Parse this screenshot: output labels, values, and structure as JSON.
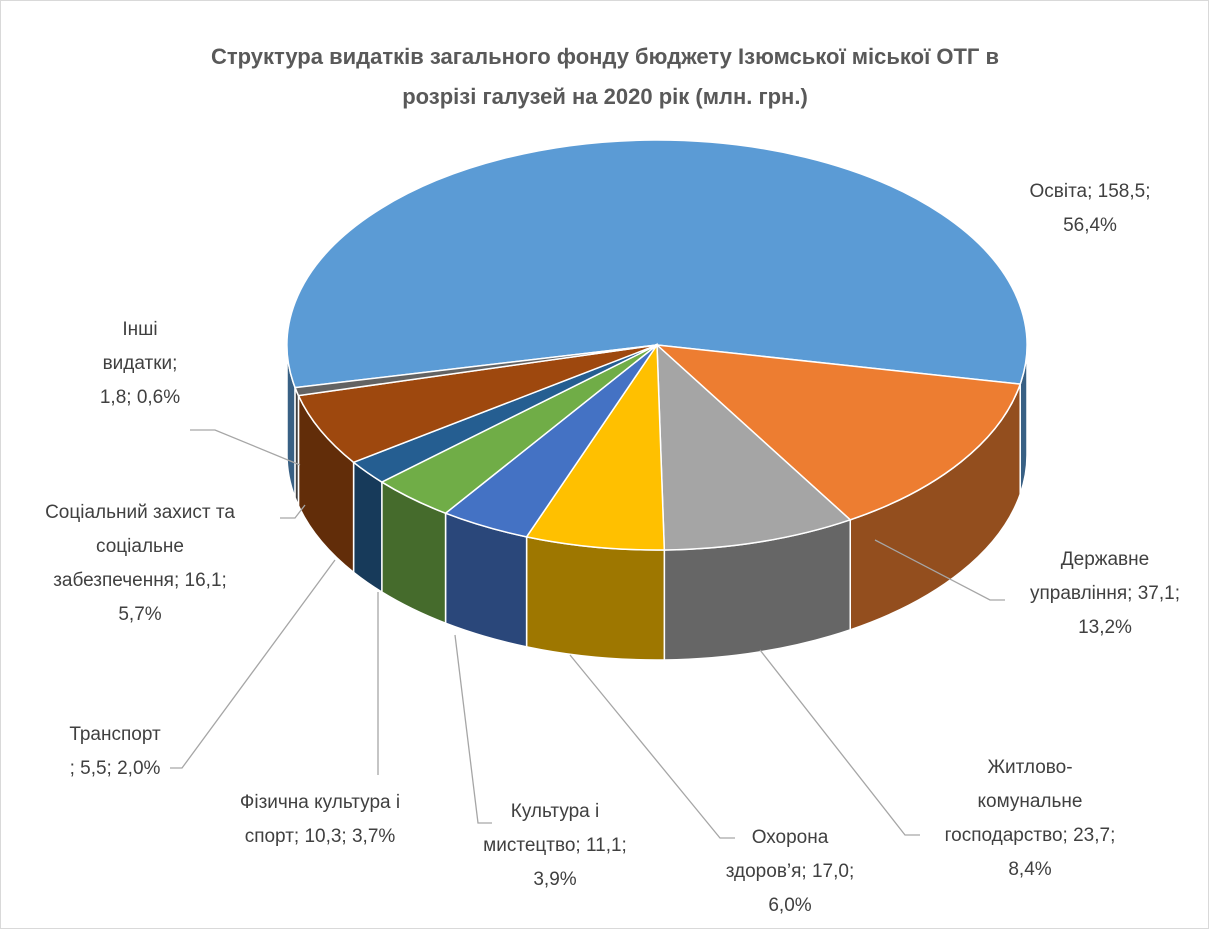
{
  "chart_data": {
    "type": "pie",
    "title": [
      "Структура видатків загального фонду бюджету Ізюмської міської ОТГ в",
      "розрізі галузей на 2020 рік (млн. грн.)"
    ],
    "categories": [
      "Освіта",
      "Державне управління",
      "Житлово-комунальне господарство",
      "Охорона здоров’я",
      "Культура і мистецтво",
      "Фізична культура і спорт",
      "Транспорт",
      "Соціальний захист та соціальне забезпечення",
      "Інші видатки"
    ],
    "values": [
      158.5,
      37.1,
      23.7,
      17.0,
      11.1,
      10.3,
      5.5,
      16.1,
      1.8
    ],
    "value_labels": [
      [
        "Освіта; 158,5;",
        "56,4%"
      ],
      [
        "Державне",
        "управління; 37,1;",
        "13,2%"
      ],
      [
        "Житлово-",
        "комунальне",
        "господарство; 23,7;",
        "8,4%"
      ],
      [
        "Охорона",
        "здоров’я; 17,0;",
        "6,0%"
      ],
      [
        "Культура і",
        "мистецтво; 11,1;",
        "3,9%"
      ],
      [
        "Фізична культура і",
        "спорт; 10,3; 3,7%"
      ],
      [
        "Транспорт",
        "; 5,5; 2,0%"
      ],
      [
        "Соціальний захист та",
        "соціальне",
        "забезпечення; 16,1;",
        "5,7%"
      ],
      [
        "Інші",
        "видатки;",
        "1,8; 0,6%"
      ]
    ],
    "colors": [
      "#5b9bd5",
      "#ed7d31",
      "#a5a5a5",
      "#ffc000",
      "#4472c4",
      "#70ad47",
      "#255e91",
      "#9e480e",
      "#636363"
    ]
  }
}
